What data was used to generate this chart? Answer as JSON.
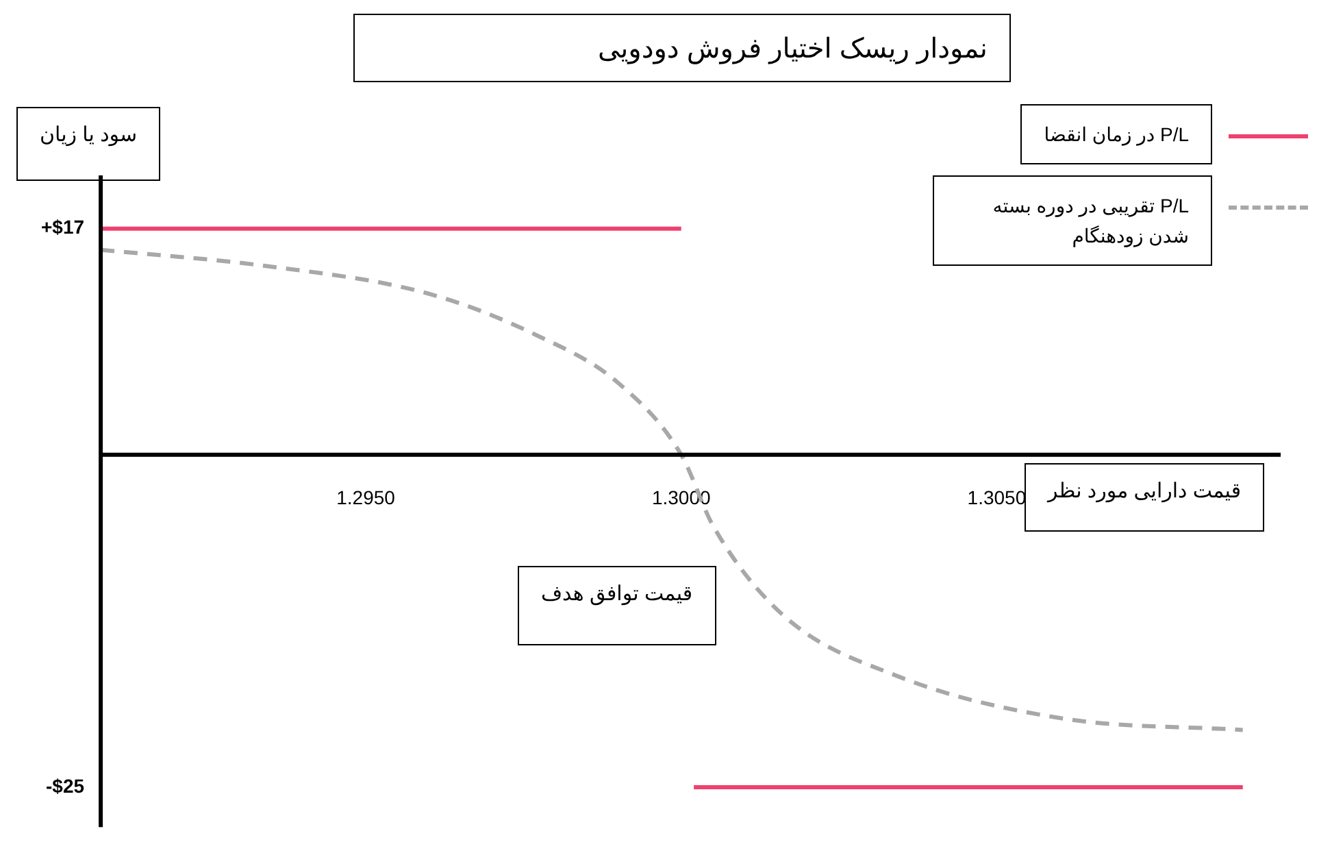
{
  "chart_data": {
    "type": "line",
    "title": "نمودار ریسک اختیار فروش دودویی",
    "ylabel": "سود یا زیان",
    "xlabel": "قیمت دارایی مورد نظر",
    "annotations": [
      "قیمت توافق هدف"
    ],
    "xlim": [
      1.2908,
      1.3095
    ],
    "xticks": [
      {
        "value": 1.295,
        "label": "1.2950"
      },
      {
        "value": 1.3,
        "label": "1.3000"
      },
      {
        "value": 1.305,
        "label": "1.3050"
      }
    ],
    "ylim": [
      -28,
      21
    ],
    "yticks": [
      {
        "value": 17,
        "label": "+$17"
      },
      {
        "value": -25,
        "label": "-$25"
      }
    ],
    "grid": false,
    "legend": "top right",
    "series": [
      {
        "name": "P/L در زمان انقضا",
        "color": "#f0406e",
        "line_style": "solid",
        "x": [
          1.2908,
          1.3,
          1.3001,
          1.3002,
          1.3089
        ],
        "values": [
          17,
          17,
          null,
          -25,
          -25
        ]
      },
      {
        "name": "P/L تقریبی در دوره بسته شدن زودهنگام",
        "color": "#a8a8a8",
        "line_style": "dashed",
        "x": [
          1.2908,
          1.2934,
          1.296,
          1.2977,
          1.299,
          1.3,
          1.3005,
          1.3016,
          1.3034,
          1.306,
          1.3089
        ],
        "values": [
          15.4,
          14.2,
          12.1,
          9,
          5.4,
          0,
          -5.3,
          -12,
          -16.6,
          -19.8,
          -20.7
        ]
      }
    ]
  }
}
